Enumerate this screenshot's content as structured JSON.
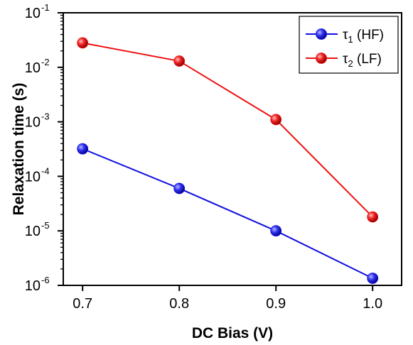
{
  "chart_data": {
    "type": "line",
    "xlabel": "DC Bias (V)",
    "ylabel": "Relaxation time (s)",
    "y_scale": "log",
    "x": [
      0.7,
      0.8,
      0.9,
      1.0
    ],
    "x_tick_labels": [
      "0.7",
      "0.8",
      "0.9",
      "1.0"
    ],
    "xlim": [
      0.68,
      1.03
    ],
    "ylim": [
      1e-06,
      0.1
    ],
    "y_ticks": [
      {
        "base": "10",
        "exp": "-6"
      },
      {
        "base": "10",
        "exp": "-5"
      },
      {
        "base": "10",
        "exp": "-4"
      },
      {
        "base": "10",
        "exp": "-3"
      },
      {
        "base": "10",
        "exp": "-2"
      },
      {
        "base": "10",
        "exp": "-1"
      }
    ],
    "grid": false,
    "legend_position": "top-right",
    "series": [
      {
        "name": "τ1 (HF)",
        "label_symbol": "τ",
        "label_sub": "1",
        "label_rest": " (HF)",
        "color": "#1010e0",
        "values": [
          0.00032,
          6e-05,
          1e-05,
          1.35e-06
        ]
      },
      {
        "name": "τ2 (LF)",
        "label_symbol": "τ",
        "label_sub": "2",
        "label_rest": " (LF)",
        "color": "#ee1111",
        "values": [
          0.028,
          0.013,
          0.0011,
          1.8e-05
        ]
      }
    ]
  }
}
